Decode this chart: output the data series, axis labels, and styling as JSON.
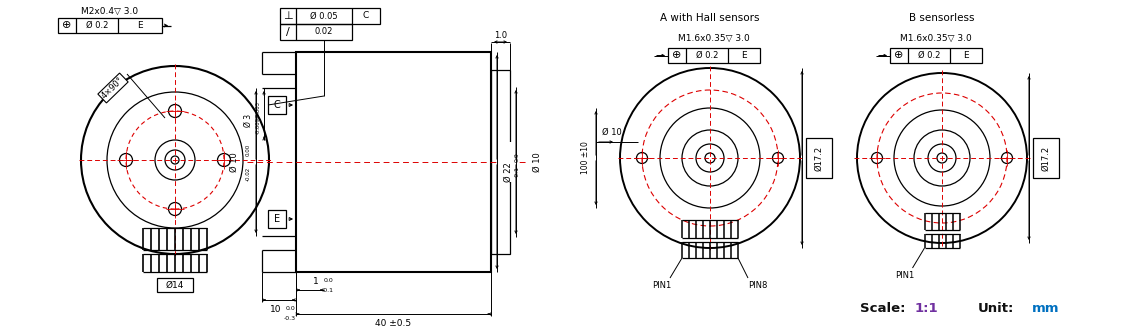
{
  "bg_color": "#ffffff",
  "line_color": "#000000",
  "red_color": "#dd0000",
  "scale_purple": "#7030a0",
  "unit_blue": "#0070c0",
  "fig_width": 11.35,
  "fig_height": 3.31,
  "dpi": 100,
  "title_A": "A with Hall sensors",
  "title_B": "B sensorless",
  "scale_text": "Scale:",
  "scale_val": "1:1",
  "unit_text": "Unit:",
  "unit_val": "mm"
}
